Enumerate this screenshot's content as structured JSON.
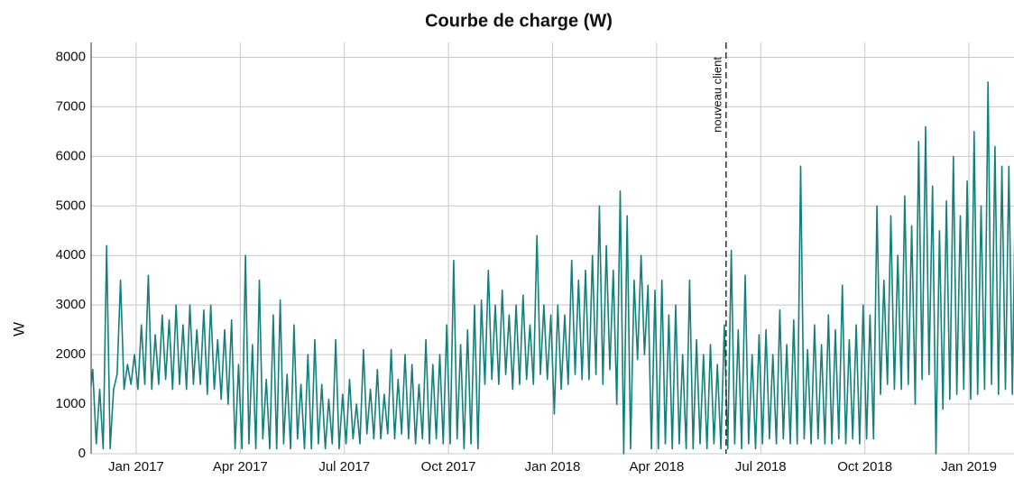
{
  "chart_data": {
    "type": "line",
    "title": "Courbe de charge (W)",
    "y_label": "W",
    "color": "#12807c",
    "grid": true,
    "x": [
      "2016-11",
      "2016-12",
      "2017-01",
      "2017-02",
      "2017-03",
      "2017-04",
      "2017-05",
      "2017-06",
      "2017-07",
      "2017-08",
      "2017-09",
      "2017-10",
      "2017-11",
      "2017-12",
      "2018-01",
      "2018-02",
      "2018-03",
      "2018-04",
      "2018-05",
      "2018-06",
      "2018-07",
      "2018-08",
      "2018-09",
      "2018-10",
      "2018-11",
      "2018-12",
      "2019-01",
      "2019-02"
    ],
    "values": [
      [
        0,
        0,
        0,
        0,
        0,
        0,
        1000,
        1700,
        200,
        1300
      ],
      [
        100,
        4200,
        100,
        1300,
        1600,
        3500,
        1300,
        1800,
        1400,
        2000
      ],
      [
        1300,
        2600,
        1400,
        3600,
        1300,
        2400,
        1400,
        2800,
        1500,
        2700
      ],
      [
        1300,
        3000,
        1400,
        2600,
        1300,
        3000,
        1400,
        2500,
        1400,
        2900
      ],
      [
        1200,
        3000,
        1300,
        2300,
        1100,
        2500,
        1000,
        2700,
        100,
        1800
      ],
      [
        100,
        4000,
        200,
        2200,
        100,
        3500,
        300,
        1500,
        100,
        2800
      ],
      [
        100,
        3100,
        200,
        1600,
        100,
        2600,
        300,
        1400,
        100,
        2000
      ],
      [
        100,
        2300,
        200,
        1400,
        100,
        1100,
        200,
        2300,
        100,
        1200
      ],
      [
        200,
        1500,
        300,
        1000,
        200,
        2100,
        400,
        1300,
        300,
        1700
      ],
      [
        300,
        1200,
        400,
        2100,
        300,
        1500,
        400,
        2000,
        300,
        1800
      ],
      [
        200,
        1400,
        300,
        2300,
        200,
        1800,
        300,
        2000,
        200,
        2600
      ],
      [
        200,
        3900,
        300,
        2200,
        100,
        2500,
        200,
        3000,
        100,
        3100
      ],
      [
        1400,
        3700,
        1500,
        3000,
        1400,
        3300,
        1600,
        2800,
        1300,
        3000
      ],
      [
        1400,
        3200,
        1500,
        2600,
        1400,
        4400,
        1600,
        3000,
        1500,
        2800
      ],
      [
        800,
        3000,
        1300,
        2800,
        1400,
        3900,
        1600,
        3500,
        1500,
        3700
      ],
      [
        1500,
        4000,
        1600,
        5000,
        1400,
        4200,
        1700,
        3700,
        1000,
        5300
      ],
      [
        0,
        4800,
        100,
        3500,
        1900,
        4000,
        2000,
        3400,
        100,
        3300
      ],
      [
        100,
        3500,
        200,
        2800,
        100,
        3000,
        200,
        2000,
        100,
        3500
      ],
      [
        100,
        2300,
        200,
        2000,
        100,
        2200,
        200,
        1800,
        100,
        2600
      ],
      [
        100,
        4100,
        200,
        2500,
        100,
        3600,
        200,
        2000,
        100,
        2400
      ],
      [
        200,
        2500,
        300,
        2000,
        200,
        2900,
        300,
        2200,
        200,
        2700
      ],
      [
        200,
        5800,
        300,
        2100,
        200,
        2600,
        300,
        2200,
        200,
        2800
      ],
      [
        200,
        2500,
        300,
        3400,
        200,
        2300,
        300,
        2600,
        200,
        3000
      ],
      [
        300,
        2800,
        300,
        5000,
        1200,
        3500,
        1400,
        4800,
        1300,
        4000
      ],
      [
        1300,
        5200,
        1400,
        4600,
        1000,
        6300,
        1500,
        6600,
        1600,
        5400
      ],
      [
        0,
        4500,
        900,
        5100,
        1100,
        6000,
        1200,
        4800,
        1300,
        5500
      ],
      [
        1100,
        6500,
        1200,
        5000,
        1300,
        7500,
        1400,
        6200,
        1200,
        5800
      ],
      [
        1300,
        5800,
        1200,
        5900,
        1300,
        3500,
        1200,
        2000,
        1200,
        1200
      ]
    ],
    "xlim": [
      "2016-11",
      "2019-03"
    ],
    "xticks": [
      {
        "value": "2017-01",
        "label": "Jan 2017"
      },
      {
        "value": "2017-04",
        "label": "Apr 2017"
      },
      {
        "value": "2017-07",
        "label": "Jul 2017"
      },
      {
        "value": "2017-10",
        "label": "Oct 2017"
      },
      {
        "value": "2018-01",
        "label": "Jan 2018"
      },
      {
        "value": "2018-04",
        "label": "Apr 2018"
      },
      {
        "value": "2018-07",
        "label": "Jul 2018"
      },
      {
        "value": "2018-10",
        "label": "Oct 2018"
      },
      {
        "value": "2019-01",
        "label": "Jan 2019"
      }
    ],
    "ylim": [
      0,
      8300
    ],
    "yticks": [
      0,
      1000,
      2000,
      3000,
      4000,
      5000,
      6000,
      7000,
      8000
    ],
    "annotations": [
      {
        "text": "nouveau client",
        "x": "2018-06"
      }
    ]
  }
}
